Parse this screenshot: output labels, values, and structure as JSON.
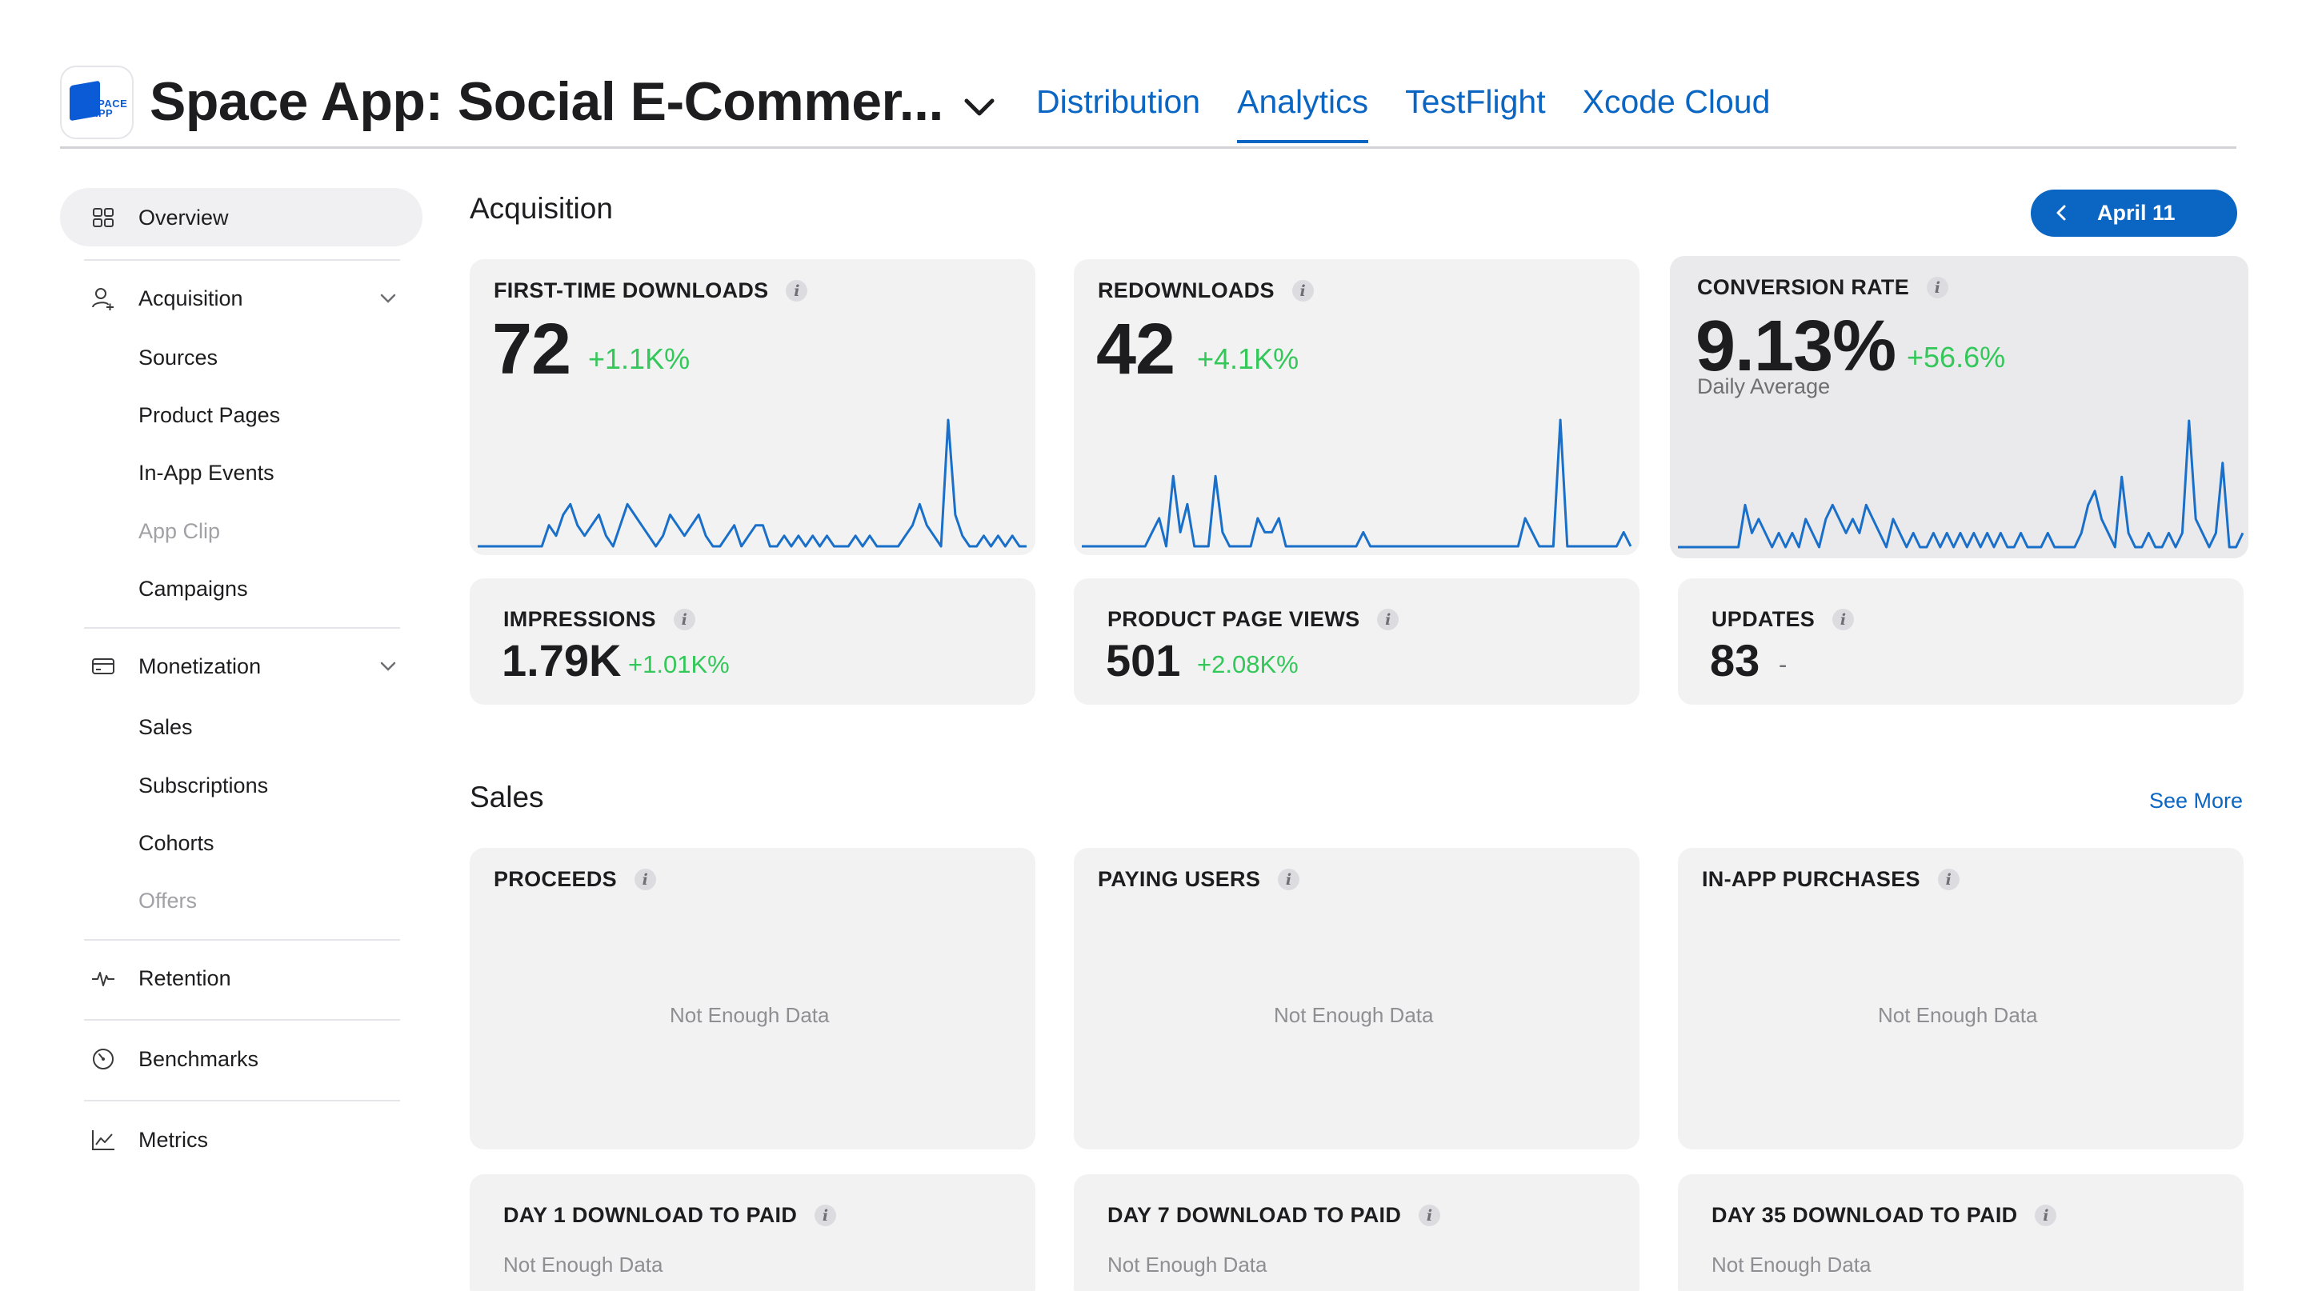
{
  "header": {
    "app_icon_text": "SPACE APP",
    "app_title": "Space App: Social E-Commer...",
    "tabs": [
      {
        "label": "Distribution"
      },
      {
        "label": "Analytics"
      },
      {
        "label": "TestFlight"
      },
      {
        "label": "Xcode Cloud"
      }
    ],
    "active_tab": "Analytics"
  },
  "sidebar": {
    "overview": "Overview",
    "acquisition": {
      "label": "Acquisition",
      "items": [
        "Sources",
        "Product Pages",
        "In-App Events",
        "App Clip",
        "Campaigns"
      ]
    },
    "monetization": {
      "label": "Monetization",
      "items": [
        "Sales",
        "Subscriptions",
        "Cohorts",
        "Offers"
      ]
    },
    "retention": "Retention",
    "benchmarks": "Benchmarks",
    "metrics": "Metrics"
  },
  "acquisition": {
    "title": "Acquisition",
    "date_label": "April 11",
    "cards": [
      {
        "label": "FIRST-TIME DOWNLOADS",
        "value": "72",
        "delta": "+1.1K%"
      },
      {
        "label": "REDOWNLOADS",
        "value": "42",
        "delta": "+4.1K%"
      },
      {
        "label": "CONVERSION RATE",
        "value": "9.13%",
        "delta": "+56.6%",
        "note": "Daily Average"
      }
    ],
    "small_cards": [
      {
        "label": "IMPRESSIONS",
        "value": "1.79K",
        "delta": "+1.01K%"
      },
      {
        "label": "PRODUCT PAGE VIEWS",
        "value": "501",
        "delta": "+2.08K%"
      },
      {
        "label": "UPDATES",
        "value": "83",
        "delta": "-"
      }
    ]
  },
  "sales": {
    "title": "Sales",
    "see_more": "See More",
    "cards": [
      {
        "label": "PROCEEDS",
        "empty": "Not Enough Data"
      },
      {
        "label": "PAYING USERS",
        "empty": "Not Enough Data"
      },
      {
        "label": "IN-APP PURCHASES",
        "empty": "Not Enough Data"
      }
    ],
    "small_cards": [
      {
        "label": "DAY 1 DOWNLOAD TO PAID",
        "empty": "Not Enough Data"
      },
      {
        "label": "DAY 7 DOWNLOAD TO PAID",
        "empty": "Not Enough Data"
      },
      {
        "label": "DAY 35 DOWNLOAD TO PAID",
        "empty": "Not Enough Data"
      }
    ]
  },
  "colors": {
    "accent": "#0a66c2",
    "positive": "#34c759",
    "spark": "#1a6fc9"
  },
  "sparklines": {
    "first_time_downloads": [
      0,
      0,
      0,
      0,
      0,
      0,
      0,
      0,
      0,
      0,
      2,
      1,
      3,
      4,
      2,
      1,
      2,
      3,
      1,
      0,
      2,
      4,
      3,
      2,
      1,
      0,
      1,
      3,
      2,
      1,
      2,
      3,
      1,
      0,
      0,
      1,
      2,
      0,
      1,
      2,
      2,
      0,
      0,
      1,
      0,
      1,
      0,
      1,
      0,
      1,
      0,
      0,
      0,
      1,
      0,
      1,
      0,
      0,
      0,
      0,
      1,
      2,
      4,
      2,
      1,
      0,
      12,
      3,
      1,
      0,
      0,
      1,
      0,
      1,
      0,
      1,
      0,
      0
    ],
    "redownloads": [
      0,
      0,
      0,
      0,
      0,
      0,
      0,
      0,
      0,
      0,
      1,
      2,
      0,
      5,
      1,
      3,
      0,
      0,
      0,
      5,
      1,
      0,
      0,
      0,
      0,
      2,
      1,
      1,
      2,
      0,
      0,
      0,
      0,
      0,
      0,
      0,
      0,
      0,
      0,
      0,
      1,
      0,
      0,
      0,
      0,
      0,
      0,
      0,
      0,
      0,
      0,
      0,
      0,
      0,
      0,
      0,
      0,
      0,
      0,
      0,
      0,
      0,
      0,
      2,
      1,
      0,
      0,
      0,
      9,
      0,
      0,
      0,
      0,
      0,
      0,
      0,
      0,
      1,
      0
    ],
    "conversion_rate": [
      0,
      0,
      0,
      0,
      0,
      0,
      0,
      0,
      0,
      0,
      3,
      1,
      2,
      1,
      0,
      1,
      0,
      1,
      0,
      2,
      1,
      0,
      2,
      3,
      2,
      1,
      2,
      1,
      3,
      2,
      1,
      0,
      2,
      1,
      0,
      1,
      0,
      0,
      1,
      0,
      1,
      0,
      1,
      0,
      1,
      0,
      1,
      0,
      1,
      0,
      0,
      1,
      0,
      0,
      0,
      1,
      0,
      0,
      0,
      0,
      1,
      3,
      4,
      2,
      1,
      0,
      5,
      1,
      0,
      0,
      1,
      0,
      0,
      1,
      0,
      1,
      9,
      2,
      1,
      0,
      1,
      6,
      0,
      0,
      1
    ]
  }
}
